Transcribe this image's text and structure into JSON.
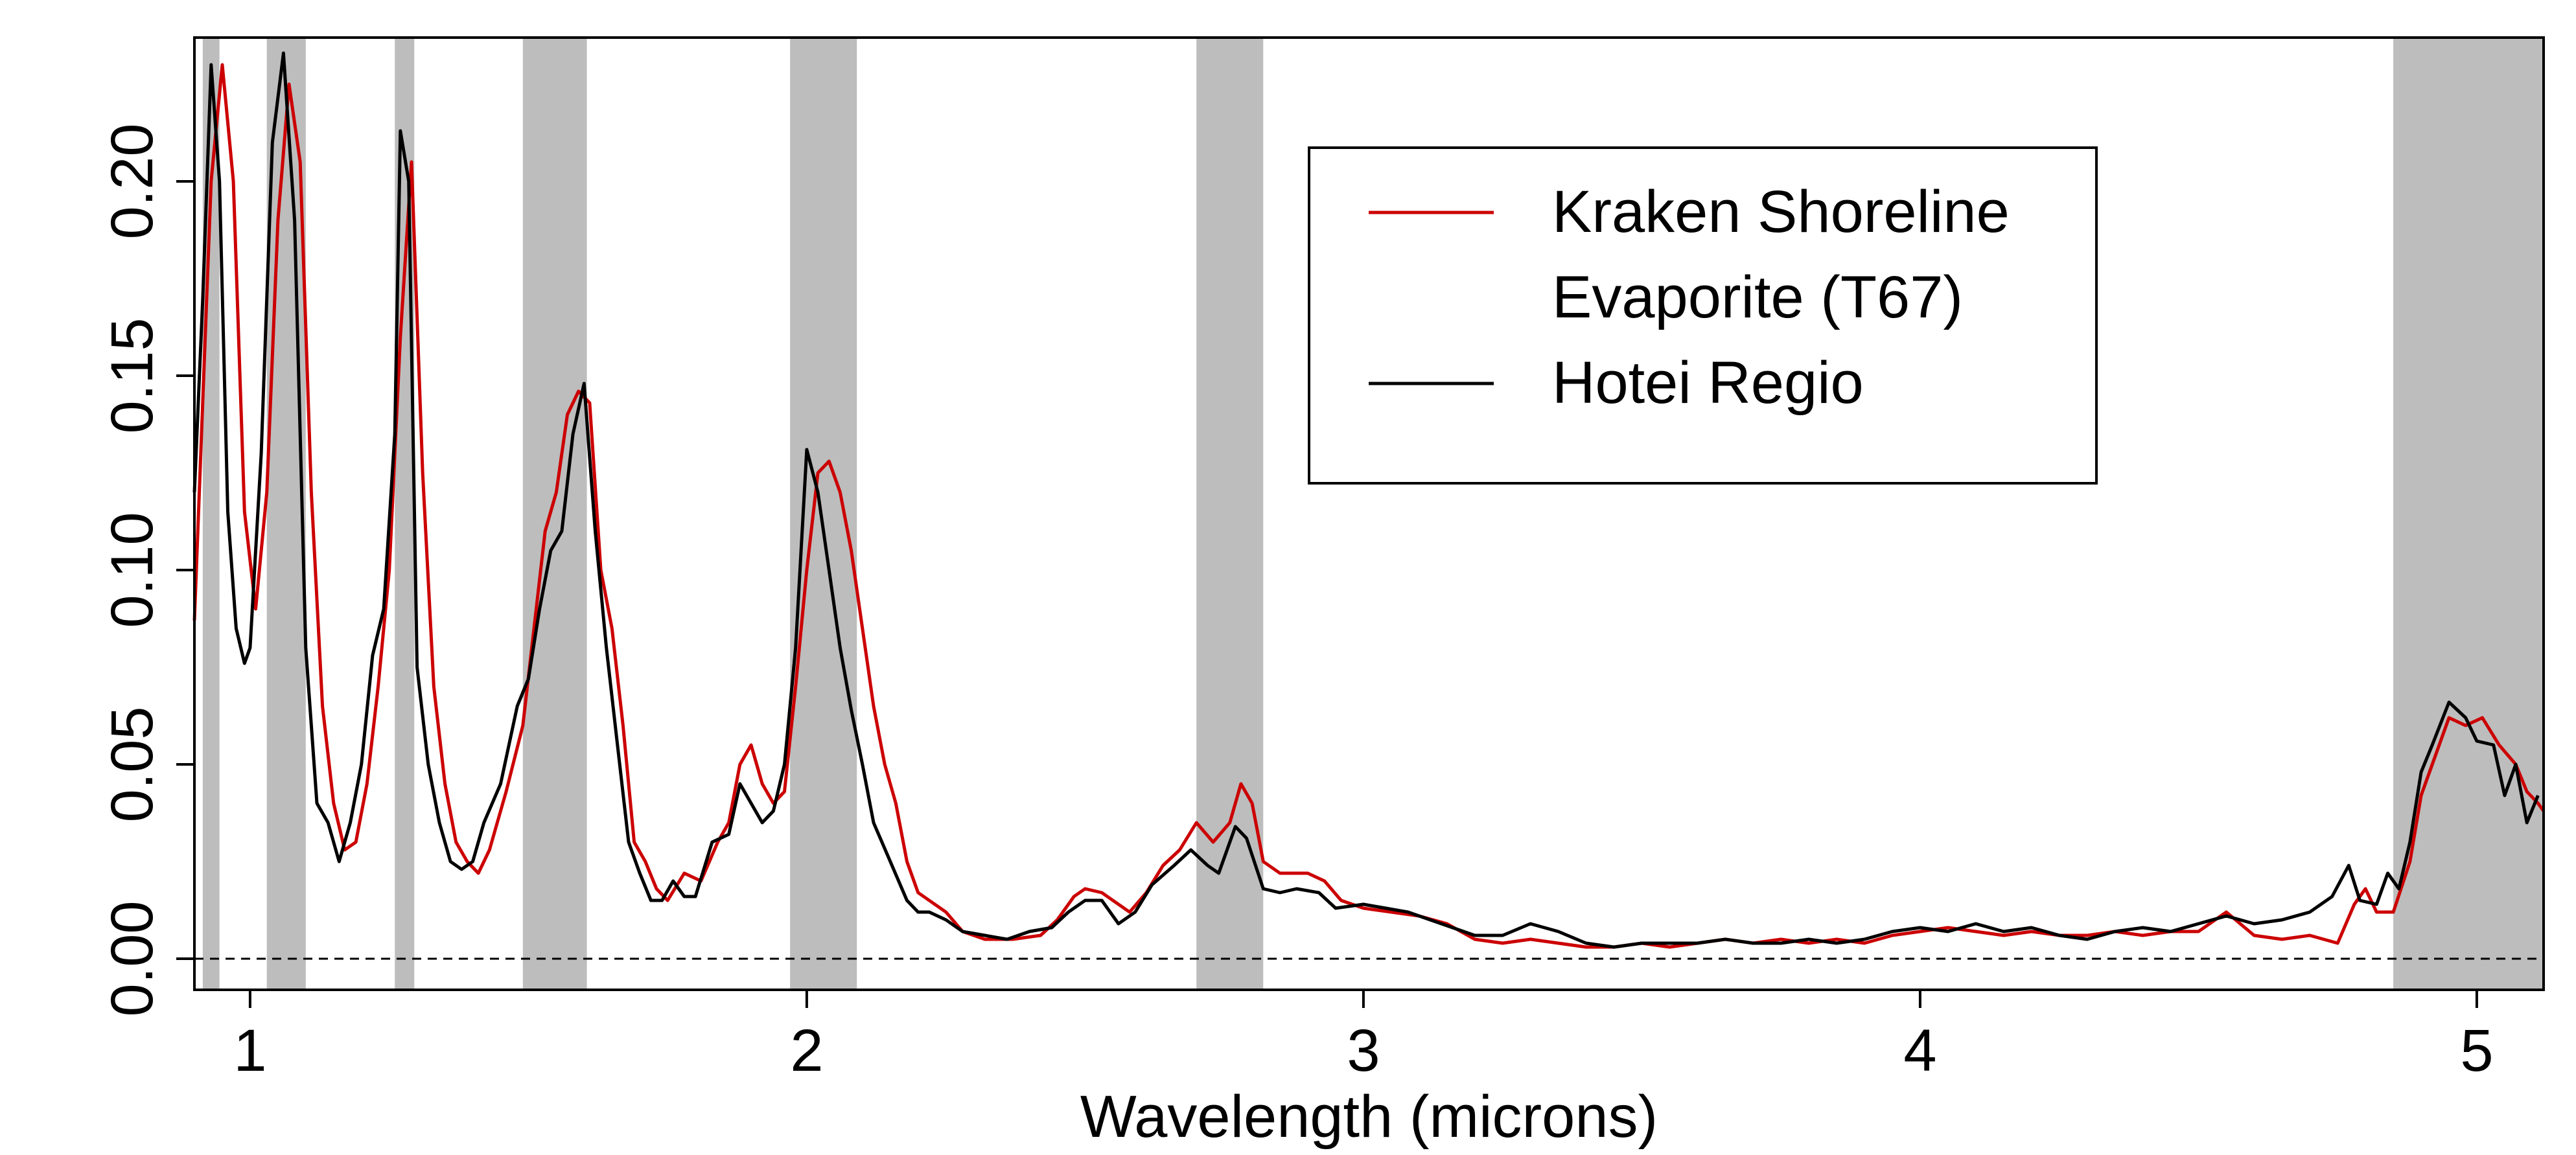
{
  "chart_data": {
    "type": "line",
    "title": "",
    "xlabel": "Wavelength (microns)",
    "ylabel": "",
    "xlim": [
      0.9,
      5.12
    ],
    "ylim": [
      -0.008,
      0.237
    ],
    "x_ticks": [
      1,
      2,
      3,
      4,
      5
    ],
    "x_tick_labels": [
      "1",
      "2",
      "3",
      "4",
      "5"
    ],
    "y_ticks": [
      0.0,
      0.05,
      0.1,
      0.15,
      0.2
    ],
    "y_tick_labels": [
      "0.00",
      "0.05",
      "0.10",
      "0.15",
      "0.20"
    ],
    "grid": false,
    "reference_line": {
      "y": 0.0,
      "style": "dashed"
    },
    "shaded_bands": [
      [
        0.915,
        0.945
      ],
      [
        1.03,
        1.1
      ],
      [
        1.26,
        1.295
      ],
      [
        1.49,
        1.605
      ],
      [
        1.97,
        2.09
      ],
      [
        2.7,
        2.82
      ],
      [
        4.85,
        5.12
      ]
    ],
    "shade_color": "#bdbdbd",
    "legend": {
      "position": "top-center-right",
      "entries": [
        {
          "label_lines": [
            "Kraken Shoreline",
            "Evaporite (T67)"
          ],
          "color": "#cc0000"
        },
        {
          "label_lines": [
            "Hotei Regio"
          ],
          "color": "#000000"
        }
      ]
    },
    "series": [
      {
        "name": "Kraken Shoreline Evaporite (T67)",
        "color": "#cc0000",
        "points": [
          [
            0.9,
            0.087
          ],
          [
            0.93,
            0.2
          ],
          [
            0.95,
            0.23
          ],
          [
            0.97,
            0.2
          ],
          [
            0.99,
            0.115
          ],
          [
            1.01,
            0.09
          ],
          [
            1.03,
            0.12
          ],
          [
            1.05,
            0.19
          ],
          [
            1.07,
            0.225
          ],
          [
            1.09,
            0.205
          ],
          [
            1.11,
            0.12
          ],
          [
            1.13,
            0.065
          ],
          [
            1.15,
            0.04
          ],
          [
            1.17,
            0.028
          ],
          [
            1.19,
            0.03
          ],
          [
            1.21,
            0.045
          ],
          [
            1.23,
            0.07
          ],
          [
            1.25,
            0.1
          ],
          [
            1.27,
            0.16
          ],
          [
            1.29,
            0.205
          ],
          [
            1.31,
            0.125
          ],
          [
            1.33,
            0.07
          ],
          [
            1.35,
            0.045
          ],
          [
            1.37,
            0.03
          ],
          [
            1.39,
            0.025
          ],
          [
            1.41,
            0.022
          ],
          [
            1.43,
            0.028
          ],
          [
            1.46,
            0.043
          ],
          [
            1.49,
            0.06
          ],
          [
            1.51,
            0.085
          ],
          [
            1.53,
            0.11
          ],
          [
            1.55,
            0.12
          ],
          [
            1.57,
            0.14
          ],
          [
            1.59,
            0.146
          ],
          [
            1.61,
            0.143
          ],
          [
            1.63,
            0.1
          ],
          [
            1.65,
            0.085
          ],
          [
            1.67,
            0.06
          ],
          [
            1.69,
            0.03
          ],
          [
            1.71,
            0.025
          ],
          [
            1.73,
            0.018
          ],
          [
            1.75,
            0.015
          ],
          [
            1.78,
            0.022
          ],
          [
            1.81,
            0.02
          ],
          [
            1.84,
            0.03
          ],
          [
            1.86,
            0.035
          ],
          [
            1.88,
            0.05
          ],
          [
            1.9,
            0.055
          ],
          [
            1.92,
            0.045
          ],
          [
            1.94,
            0.04
          ],
          [
            1.96,
            0.043
          ],
          [
            1.98,
            0.07
          ],
          [
            2.0,
            0.1
          ],
          [
            2.02,
            0.125
          ],
          [
            2.04,
            0.128
          ],
          [
            2.06,
            0.12
          ],
          [
            2.08,
            0.105
          ],
          [
            2.1,
            0.085
          ],
          [
            2.12,
            0.065
          ],
          [
            2.14,
            0.05
          ],
          [
            2.16,
            0.04
          ],
          [
            2.18,
            0.025
          ],
          [
            2.2,
            0.017
          ],
          [
            2.22,
            0.015
          ],
          [
            2.25,
            0.012
          ],
          [
            2.28,
            0.007
          ],
          [
            2.32,
            0.005
          ],
          [
            2.37,
            0.005
          ],
          [
            2.42,
            0.006
          ],
          [
            2.45,
            0.01
          ],
          [
            2.48,
            0.016
          ],
          [
            2.5,
            0.018
          ],
          [
            2.53,
            0.017
          ],
          [
            2.56,
            0.014
          ],
          [
            2.58,
            0.012
          ],
          [
            2.61,
            0.017
          ],
          [
            2.64,
            0.024
          ],
          [
            2.67,
            0.028
          ],
          [
            2.7,
            0.035
          ],
          [
            2.73,
            0.03
          ],
          [
            2.76,
            0.035
          ],
          [
            2.78,
            0.045
          ],
          [
            2.8,
            0.04
          ],
          [
            2.82,
            0.025
          ],
          [
            2.85,
            0.022
          ],
          [
            2.9,
            0.022
          ],
          [
            2.93,
            0.02
          ],
          [
            2.96,
            0.015
          ],
          [
            3.0,
            0.013
          ],
          [
            3.05,
            0.012
          ],
          [
            3.1,
            0.011
          ],
          [
            3.15,
            0.009
          ],
          [
            3.2,
            0.005
          ],
          [
            3.25,
            0.004
          ],
          [
            3.3,
            0.005
          ],
          [
            3.35,
            0.004
          ],
          [
            3.4,
            0.003
          ],
          [
            3.45,
            0.003
          ],
          [
            3.5,
            0.004
          ],
          [
            3.55,
            0.003
          ],
          [
            3.6,
            0.004
          ],
          [
            3.65,
            0.005
          ],
          [
            3.7,
            0.004
          ],
          [
            3.75,
            0.005
          ],
          [
            3.8,
            0.004
          ],
          [
            3.85,
            0.005
          ],
          [
            3.9,
            0.004
          ],
          [
            3.95,
            0.006
          ],
          [
            4.0,
            0.007
          ],
          [
            4.05,
            0.008
          ],
          [
            4.1,
            0.007
          ],
          [
            4.15,
            0.006
          ],
          [
            4.2,
            0.007
          ],
          [
            4.25,
            0.006
          ],
          [
            4.3,
            0.006
          ],
          [
            4.35,
            0.007
          ],
          [
            4.4,
            0.006
          ],
          [
            4.45,
            0.007
          ],
          [
            4.5,
            0.007
          ],
          [
            4.55,
            0.012
          ],
          [
            4.6,
            0.006
          ],
          [
            4.65,
            0.005
          ],
          [
            4.7,
            0.006
          ],
          [
            4.75,
            0.004
          ],
          [
            4.78,
            0.014
          ],
          [
            4.8,
            0.018
          ],
          [
            4.82,
            0.012
          ],
          [
            4.85,
            0.012
          ],
          [
            4.88,
            0.025
          ],
          [
            4.9,
            0.042
          ],
          [
            4.92,
            0.05
          ],
          [
            4.95,
            0.062
          ],
          [
            4.98,
            0.06
          ],
          [
            5.01,
            0.062
          ],
          [
            5.04,
            0.055
          ],
          [
            5.07,
            0.05
          ],
          [
            5.09,
            0.043
          ],
          [
            5.11,
            0.04
          ],
          [
            5.12,
            0.038
          ]
        ]
      },
      {
        "name": "Hotei Regio",
        "color": "#000000",
        "points": [
          [
            0.9,
            0.12
          ],
          [
            0.915,
            0.17
          ],
          [
            0.93,
            0.23
          ],
          [
            0.945,
            0.2
          ],
          [
            0.96,
            0.115
          ],
          [
            0.975,
            0.085
          ],
          [
            0.99,
            0.076
          ],
          [
            1.0,
            0.08
          ],
          [
            1.02,
            0.13
          ],
          [
            1.04,
            0.21
          ],
          [
            1.06,
            0.233
          ],
          [
            1.08,
            0.19
          ],
          [
            1.1,
            0.08
          ],
          [
            1.12,
            0.04
          ],
          [
            1.14,
            0.035
          ],
          [
            1.16,
            0.025
          ],
          [
            1.18,
            0.035
          ],
          [
            1.2,
            0.05
          ],
          [
            1.22,
            0.078
          ],
          [
            1.24,
            0.09
          ],
          [
            1.26,
            0.135
          ],
          [
            1.27,
            0.213
          ],
          [
            1.285,
            0.2
          ],
          [
            1.3,
            0.075
          ],
          [
            1.32,
            0.05
          ],
          [
            1.34,
            0.035
          ],
          [
            1.36,
            0.025
          ],
          [
            1.38,
            0.023
          ],
          [
            1.4,
            0.025
          ],
          [
            1.42,
            0.035
          ],
          [
            1.45,
            0.045
          ],
          [
            1.48,
            0.065
          ],
          [
            1.5,
            0.072
          ],
          [
            1.52,
            0.09
          ],
          [
            1.54,
            0.105
          ],
          [
            1.56,
            0.11
          ],
          [
            1.58,
            0.135
          ],
          [
            1.6,
            0.148
          ],
          [
            1.62,
            0.11
          ],
          [
            1.64,
            0.08
          ],
          [
            1.66,
            0.055
          ],
          [
            1.68,
            0.03
          ],
          [
            1.7,
            0.022
          ],
          [
            1.72,
            0.015
          ],
          [
            1.74,
            0.015
          ],
          [
            1.76,
            0.02
          ],
          [
            1.78,
            0.016
          ],
          [
            1.8,
            0.016
          ],
          [
            1.83,
            0.03
          ],
          [
            1.86,
            0.032
          ],
          [
            1.88,
            0.045
          ],
          [
            1.9,
            0.04
          ],
          [
            1.92,
            0.035
          ],
          [
            1.94,
            0.038
          ],
          [
            1.96,
            0.05
          ],
          [
            1.98,
            0.08
          ],
          [
            2.0,
            0.131
          ],
          [
            2.02,
            0.12
          ],
          [
            2.04,
            0.1
          ],
          [
            2.06,
            0.08
          ],
          [
            2.08,
            0.064
          ],
          [
            2.1,
            0.05
          ],
          [
            2.12,
            0.035
          ],
          [
            2.15,
            0.025
          ],
          [
            2.18,
            0.015
          ],
          [
            2.2,
            0.012
          ],
          [
            2.22,
            0.012
          ],
          [
            2.25,
            0.01
          ],
          [
            2.28,
            0.007
          ],
          [
            2.32,
            0.006
          ],
          [
            2.36,
            0.005
          ],
          [
            2.4,
            0.007
          ],
          [
            2.44,
            0.008
          ],
          [
            2.47,
            0.012
          ],
          [
            2.5,
            0.015
          ],
          [
            2.53,
            0.015
          ],
          [
            2.56,
            0.009
          ],
          [
            2.59,
            0.012
          ],
          [
            2.62,
            0.019
          ],
          [
            2.66,
            0.024
          ],
          [
            2.69,
            0.028
          ],
          [
            2.72,
            0.024
          ],
          [
            2.74,
            0.022
          ],
          [
            2.77,
            0.034
          ],
          [
            2.79,
            0.031
          ],
          [
            2.82,
            0.018
          ],
          [
            2.85,
            0.017
          ],
          [
            2.88,
            0.018
          ],
          [
            2.92,
            0.017
          ],
          [
            2.95,
            0.013
          ],
          [
            3.0,
            0.014
          ],
          [
            3.04,
            0.013
          ],
          [
            3.08,
            0.012
          ],
          [
            3.12,
            0.01
          ],
          [
            3.16,
            0.008
          ],
          [
            3.2,
            0.006
          ],
          [
            3.25,
            0.006
          ],
          [
            3.3,
            0.009
          ],
          [
            3.35,
            0.007
          ],
          [
            3.4,
            0.004
          ],
          [
            3.45,
            0.003
          ],
          [
            3.5,
            0.004
          ],
          [
            3.55,
            0.004
          ],
          [
            3.6,
            0.004
          ],
          [
            3.65,
            0.005
          ],
          [
            3.7,
            0.004
          ],
          [
            3.75,
            0.004
          ],
          [
            3.8,
            0.005
          ],
          [
            3.85,
            0.004
          ],
          [
            3.9,
            0.005
          ],
          [
            3.95,
            0.007
          ],
          [
            4.0,
            0.008
          ],
          [
            4.05,
            0.007
          ],
          [
            4.1,
            0.009
          ],
          [
            4.15,
            0.007
          ],
          [
            4.2,
            0.008
          ],
          [
            4.25,
            0.006
          ],
          [
            4.3,
            0.005
          ],
          [
            4.35,
            0.007
          ],
          [
            4.4,
            0.008
          ],
          [
            4.45,
            0.007
          ],
          [
            4.5,
            0.009
          ],
          [
            4.55,
            0.011
          ],
          [
            4.6,
            0.009
          ],
          [
            4.65,
            0.01
          ],
          [
            4.7,
            0.012
          ],
          [
            4.74,
            0.016
          ],
          [
            4.77,
            0.024
          ],
          [
            4.79,
            0.015
          ],
          [
            4.82,
            0.014
          ],
          [
            4.84,
            0.022
          ],
          [
            4.86,
            0.018
          ],
          [
            4.88,
            0.03
          ],
          [
            4.9,
            0.048
          ],
          [
            4.92,
            0.055
          ],
          [
            4.95,
            0.066
          ],
          [
            4.98,
            0.062
          ],
          [
            5.0,
            0.056
          ],
          [
            5.03,
            0.055
          ],
          [
            5.05,
            0.042
          ],
          [
            5.07,
            0.05
          ],
          [
            5.09,
            0.035
          ],
          [
            5.11,
            0.042
          ]
        ]
      }
    ]
  }
}
